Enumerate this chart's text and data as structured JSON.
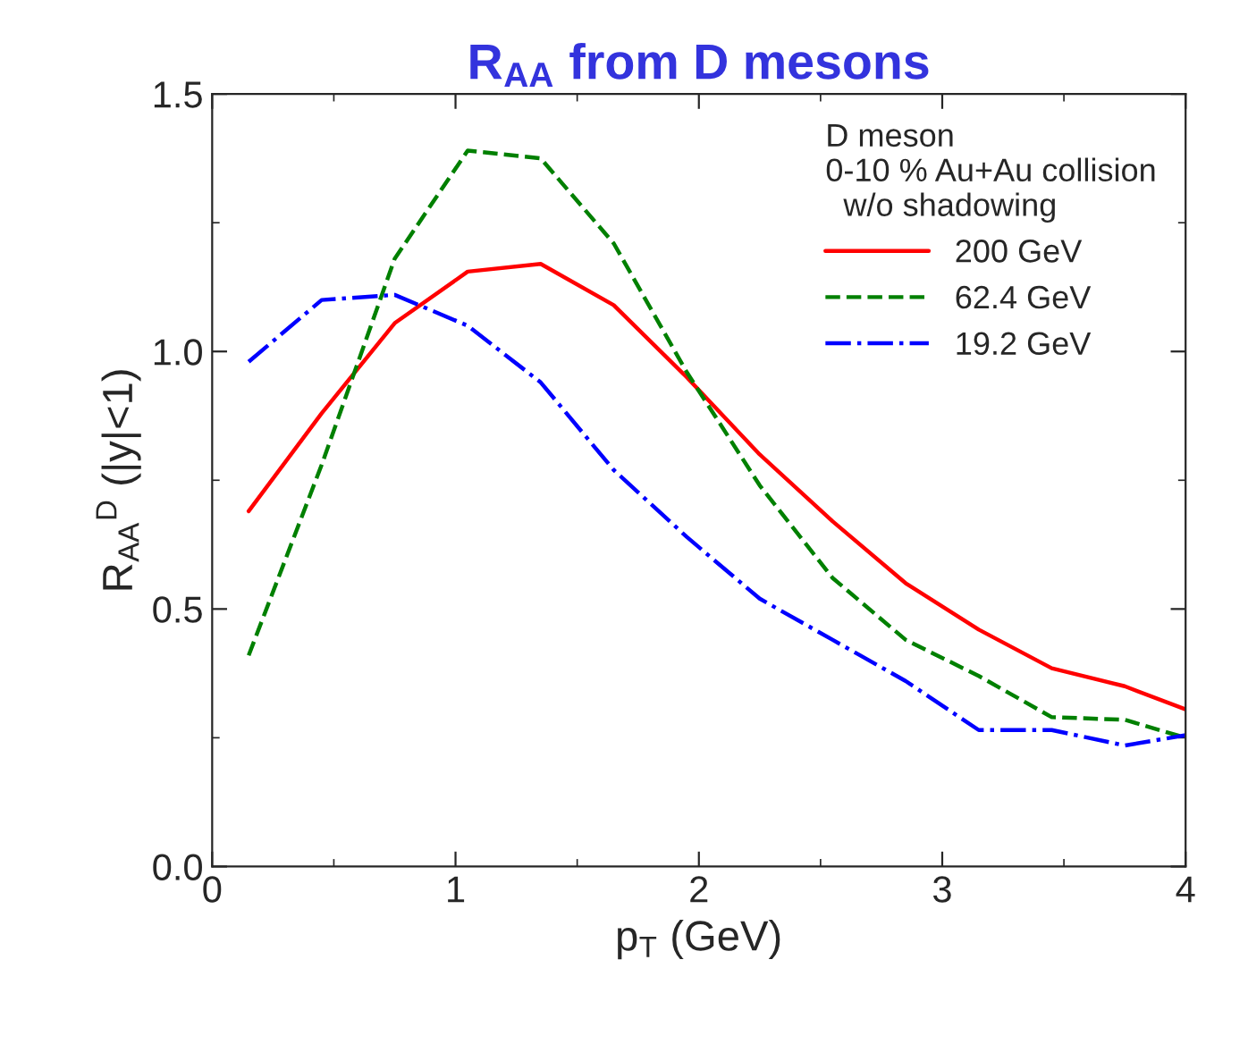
{
  "chart_data": {
    "type": "line",
    "title": "R$_{AA}$ from D mesons",
    "xlabel": "p$_{T}$ (GeV)",
    "ylabel": "R$_{AA}$$^{D}$ (|y|<1)",
    "legend_title": "D meson\n0-10 % Au+Au collision\n  w/o shadowing",
    "x": [
      0.15,
      0.45,
      0.75,
      1.05,
      1.35,
      1.65,
      1.95,
      2.25,
      2.55,
      2.85,
      3.15,
      3.45,
      3.75,
      4.0
    ],
    "series": [
      {
        "name": "200 GeV",
        "color": "#ff0000",
        "line_style": "solid",
        "values": [
          0.69,
          0.88,
          1.055,
          1.155,
          1.17,
          1.09,
          0.95,
          0.8,
          0.67,
          0.55,
          0.46,
          0.385,
          0.35,
          0.305
        ]
      },
      {
        "name": "62.4 GeV",
        "color": "#008000",
        "line_style": "dashed",
        "values": [
          0.41,
          0.78,
          1.18,
          1.39,
          1.375,
          1.21,
          0.96,
          0.74,
          0.56,
          0.44,
          0.37,
          0.29,
          0.285,
          0.25
        ]
      },
      {
        "name": "19.2 GeV",
        "color": "#0000ff",
        "line_style": "dashdot",
        "values": [
          0.98,
          1.1,
          1.11,
          1.05,
          0.94,
          0.77,
          0.64,
          0.52,
          0.44,
          0.36,
          0.265,
          0.265,
          0.235,
          0.255
        ]
      }
    ],
    "xlim": [
      0,
      4
    ],
    "xticks": [
      0,
      1,
      2,
      3,
      4
    ],
    "ylim": [
      0,
      1.5
    ],
    "yticks": [
      {
        "value": 0,
        "label": "0.0"
      },
      0.5,
      {
        "value": 1,
        "label": "1.0"
      },
      1.5
    ],
    "legend": "top right",
    "grid": false
  }
}
